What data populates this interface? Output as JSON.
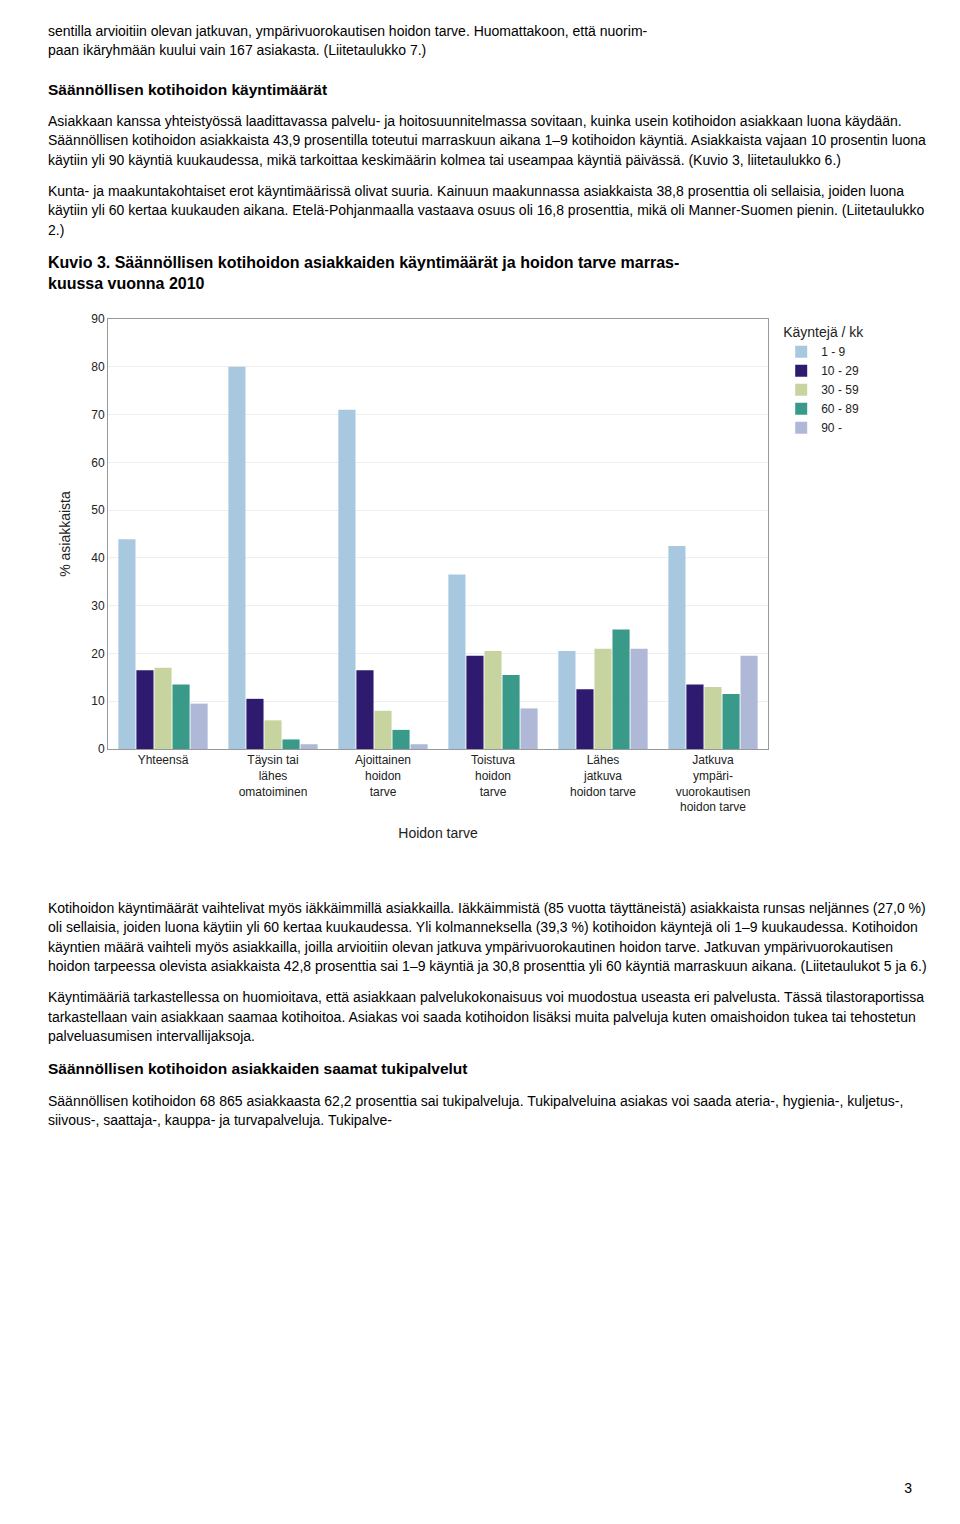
{
  "page": {
    "text_top": [
      "sentilla arvioitiin olevan jatkuvan, ympärivuorokautisen hoidon tarve. Huomattakoon, että nuorim-",
      "paan ikäryhmään kuului vain 167 asiakasta. (Liitetaulukko 7.)"
    ],
    "heading1": "Säännöllisen kotihoidon käyntimäärät",
    "para1": "Asiakkaan kanssa yhteistyössä laadittavassa palvelu- ja hoitosuunnitelmassa sovitaan, kuinka usein kotihoidon asiakkaan luona käydään. Säännöllisen kotihoidon asiakkaista 43,9 prosentilla toteutui marraskuun aikana 1–9 kotihoidon käyntiä. Asiakkaista vajaan 10 prosentin luona käytiin yli 90 käyntiä kuukaudessa, mikä tarkoittaa keskimäärin kolmea tai useampaa käyntiä päivässä. (Kuvio 3, liitetaulukko 6.)",
    "para2": "Kunta- ja maakuntakohtaiset erot käyntimäärissä olivat suuria. Kainuun maakunnassa asiakkaista 38,8 prosenttia oli sellaisia, joiden luona käytiin yli 60 kertaa kuukauden aikana. Etelä-Pohjanmaalla vastaava osuus oli 16,8 prosenttia, mikä oli Manner-Suomen pienin. (Liitetaulukko 2.)",
    "text_after1": "Kotihoidon käyntimäärät vaihtelivat myös iäkkäimmillä asiakkailla. Iäkkäimmistä (85 vuotta täyttäneistä) asiakkaista runsas neljännes (27,0 %) oli sellaisia, joiden luona käytiin yli 60 kertaa kuukaudessa. Yli kolmanneksella (39,3 %) kotihoidon käyntejä oli 1–9 kuukaudessa. Kotihoidon käyntien määrä vaihteli myös asiakkailla, joilla arvioitiin olevan jatkuva ympärivuorokautinen hoidon tarve. Jatkuvan ympärivuorokautisen hoidon tarpeessa olevista asiakkaista 42,8 prosenttia sai 1–9 käyntiä ja 30,8 prosenttia yli 60 käyntiä marraskuun aikana. (Liitetaulukot 5 ja 6.)",
    "text_after2": "Käyntimääriä tarkastellessa on huomioitava, että asiakkaan palvelukokonaisuus voi muodostua useasta eri palvelusta. Tässä tilastoraportissa tarkastellaan vain asiakkaan saamaa kotihoitoa. Asiakas voi saada kotihoidon lisäksi muita palveluja kuten omaishoidon tukea tai tehostetun palveluasumisen intervallijaksoja.",
    "heading2": "Säännöllisen kotihoidon asiakkaiden saamat tukipalvelut",
    "text_after3": "Säännöllisen kotihoidon 68 865 asiakkaasta 62,2 prosenttia sai tukipalveluja. Tukipalveluina asiakas voi saada ateria-, hygienia-, kuljetus-, siivous-, saattaja-, kauppa- ja turvapalveluja. Tukipalve-",
    "page_num": "3"
  },
  "chart_data": {
    "type": "bar",
    "title": "Kuvio 3. Säännöllisen kotihoidon asiakkaiden käyntimäärät ja hoidon tarve marras-\nkuussa vuonna 2010",
    "xlabel": "Hoidon tarve",
    "ylabel": "% asiakkaista",
    "categories": [
      "Yhteensä",
      "Täysin tai\nlähes\nomatoiminen",
      "Ajoittainen\nhoidon\ntarve",
      "Toistuva\nhoidon\ntarve",
      "Lähes\njatkuva\nhoidon tarve",
      "Jatkuva\nympäri-\nvuorokautisen\nhoidon tarve"
    ],
    "legend_title": "Käyntejä / kk",
    "series": [
      {
        "name": "1 - 9",
        "color": "#a8c8e0",
        "values": [
          43.9,
          80.0,
          71.0,
          36.5,
          20.5,
          42.5
        ]
      },
      {
        "name": "10 - 29",
        "color": "#2e1a6e",
        "values": [
          16.5,
          10.5,
          16.5,
          19.5,
          12.5,
          13.5
        ]
      },
      {
        "name": "30 - 59",
        "color": "#c8d4a0",
        "values": [
          17.0,
          6.0,
          8.0,
          20.5,
          21.0,
          13.0
        ]
      },
      {
        "name": "60 - 89",
        "color": "#3a9a8a",
        "values": [
          13.5,
          2.0,
          4.0,
          15.5,
          25.0,
          11.5
        ]
      },
      {
        "name": "90 -",
        "color": "#b0b8d8",
        "values": [
          9.5,
          1.0,
          1.0,
          8.5,
          21.0,
          19.5
        ]
      }
    ],
    "ylim": [
      0,
      90
    ],
    "yticks": [
      0,
      10,
      20,
      30,
      40,
      50,
      60,
      70,
      80,
      90
    ],
    "grid": true,
    "legend": "upper right"
  }
}
